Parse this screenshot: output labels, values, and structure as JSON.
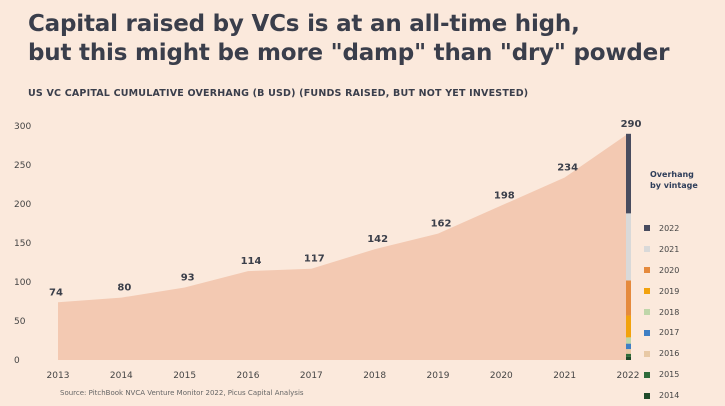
{
  "title": {
    "line1": "Capital raised by VCs is at an all-time high,",
    "line2": "but this might be more \"damp\" than \"dry\" powder"
  },
  "subtitle": "US VC CAPITAL CUMULATIVE OVERHANG (B USD) (FUNDS RAISED, BUT NOT YET INVESTED)",
  "source": "Source: PitchBook NVCA Venture Monitor 2022, Picus Capital Analysis",
  "legend": {
    "title_line1": "Overhang",
    "title_line2": "by vintage"
  },
  "colors": {
    "area": "#f3c9b2",
    "axis_text": "#444444",
    "label_text": "#3b3f4a"
  },
  "chart_data": {
    "type": "area",
    "title": "US VC CAPITAL CUMULATIVE OVERHANG (B USD) (FUNDS RAISED, BUT NOT YET INVESTED)",
    "categories": [
      "2013",
      "2014",
      "2015",
      "2016",
      "2017",
      "2018",
      "2019",
      "2020",
      "2021",
      "2022"
    ],
    "values": [
      74,
      80,
      93,
      114,
      117,
      142,
      162,
      198,
      234,
      290
    ],
    "ylim": [
      0,
      300
    ],
    "yticks": [
      0,
      50,
      100,
      150,
      200,
      250,
      300
    ],
    "xlabel": "",
    "ylabel": "",
    "stacked_bar": {
      "category": "2022",
      "legend_position": "right",
      "segments": [
        {
          "name": "2014",
          "value": 4,
          "color": "#1f4a2a"
        },
        {
          "name": "2015",
          "value": 4,
          "color": "#2e6b3a"
        },
        {
          "name": "2016",
          "value": 6,
          "color": "#e8c9a5"
        },
        {
          "name": "2017",
          "value": 7,
          "color": "#3f7fc4"
        },
        {
          "name": "2018",
          "value": 8,
          "color": "#bfd6a9"
        },
        {
          "name": "2019",
          "value": 28,
          "color": "#f2a20d"
        },
        {
          "name": "2020",
          "value": 45,
          "color": "#e58a3d"
        },
        {
          "name": "2021",
          "value": 86,
          "color": "#d9d9d9"
        },
        {
          "name": "2022",
          "value": 102,
          "color": "#484b5e"
        }
      ]
    }
  }
}
